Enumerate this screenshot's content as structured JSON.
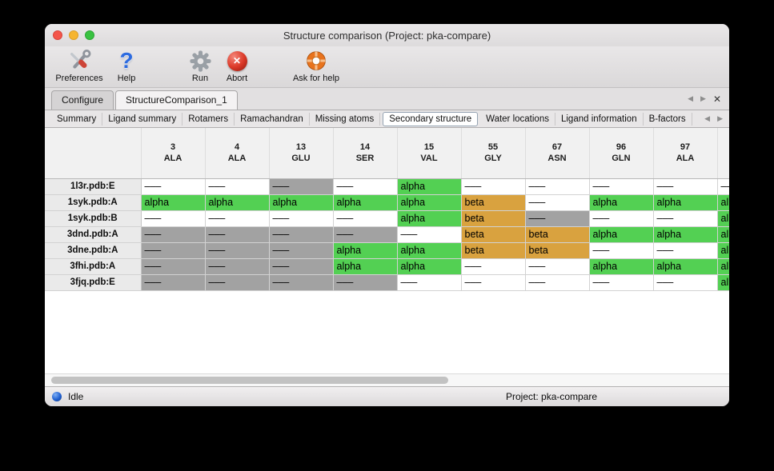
{
  "window": {
    "title": "Structure comparison (Project: pka-compare)"
  },
  "colors": {
    "alpha": "#53d053",
    "beta": "#d9a23f",
    "gray_cell": "#a2a2a2",
    "accent_blue": "#1f5fd0",
    "abort_red": "#dc3a29",
    "lifebuoy_orange": "#e8731d",
    "help_blue": "#2d6be0"
  },
  "icons": {
    "scroll_left": "◀",
    "scroll_right": "▶",
    "close_tab": "✕",
    "help_glyph": "?",
    "abort_glyph": "✕"
  },
  "toolbar": {
    "items": [
      {
        "id": "preferences",
        "label": "Preferences",
        "icon": "tools-icon"
      },
      {
        "id": "help",
        "label": "Help",
        "icon": "question-mark-icon"
      },
      {
        "id": "run",
        "label": "Run",
        "icon": "gear-icon"
      },
      {
        "id": "abort",
        "label": "Abort",
        "icon": "abort-icon"
      },
      {
        "id": "ask-for-help",
        "label": "Ask for help",
        "icon": "lifebuoy-icon"
      }
    ]
  },
  "main_tabs": {
    "items": [
      {
        "label": "Configure",
        "active": false
      },
      {
        "label": "StructureComparison_1",
        "active": true
      }
    ]
  },
  "sub_tabs": {
    "items": [
      {
        "label": "Summary",
        "active": false
      },
      {
        "label": "Ligand summary",
        "active": false
      },
      {
        "label": "Rotamers",
        "active": false
      },
      {
        "label": "Ramachandran",
        "active": false
      },
      {
        "label": "Missing atoms",
        "active": false
      },
      {
        "label": "Secondary structure",
        "active": true
      },
      {
        "label": "Water locations",
        "active": false
      },
      {
        "label": "Ligand information",
        "active": false
      },
      {
        "label": "B-factors",
        "active": false
      }
    ]
  },
  "table": {
    "columns": [
      {
        "num": "3",
        "res": "ALA"
      },
      {
        "num": "4",
        "res": "ALA"
      },
      {
        "num": "13",
        "res": "GLU"
      },
      {
        "num": "14",
        "res": "SER"
      },
      {
        "num": "15",
        "res": "VAL"
      },
      {
        "num": "55",
        "res": "GLY"
      },
      {
        "num": "67",
        "res": "ASN"
      },
      {
        "num": "96",
        "res": "GLN"
      },
      {
        "num": "97",
        "res": "ALA"
      },
      {
        "num": "",
        "res": ""
      }
    ],
    "rows": [
      {
        "name": "1l3r.pdb:E",
        "cells": [
          {
            "v": "–––",
            "t": "blank"
          },
          {
            "v": "–––",
            "t": "blank"
          },
          {
            "v": "–––",
            "t": "gray"
          },
          {
            "v": "–––",
            "t": "blank"
          },
          {
            "v": "alpha",
            "t": "alpha"
          },
          {
            "v": "–––",
            "t": "blank"
          },
          {
            "v": "–––",
            "t": "blank"
          },
          {
            "v": "–––",
            "t": "blank"
          },
          {
            "v": "–––",
            "t": "blank"
          },
          {
            "v": "–––",
            "t": "blank"
          }
        ]
      },
      {
        "name": "1syk.pdb:A",
        "cells": [
          {
            "v": "alpha",
            "t": "alpha"
          },
          {
            "v": "alpha",
            "t": "alpha"
          },
          {
            "v": "alpha",
            "t": "alpha"
          },
          {
            "v": "alpha",
            "t": "alpha"
          },
          {
            "v": "alpha",
            "t": "alpha"
          },
          {
            "v": "beta",
            "t": "beta"
          },
          {
            "v": "–––",
            "t": "blank"
          },
          {
            "v": "alpha",
            "t": "alpha"
          },
          {
            "v": "alpha",
            "t": "alpha"
          },
          {
            "v": "alpha",
            "t": "alpha"
          }
        ]
      },
      {
        "name": "1syk.pdb:B",
        "cells": [
          {
            "v": "–––",
            "t": "blank"
          },
          {
            "v": "–––",
            "t": "blank"
          },
          {
            "v": "–––",
            "t": "blank"
          },
          {
            "v": "–––",
            "t": "blank"
          },
          {
            "v": "alpha",
            "t": "alpha"
          },
          {
            "v": "beta",
            "t": "beta"
          },
          {
            "v": "–––",
            "t": "gray"
          },
          {
            "v": "–––",
            "t": "blank"
          },
          {
            "v": "–––",
            "t": "blank"
          },
          {
            "v": "alpha",
            "t": "alpha"
          }
        ]
      },
      {
        "name": "3dnd.pdb:A",
        "cells": [
          {
            "v": "–––",
            "t": "gray"
          },
          {
            "v": "–––",
            "t": "gray"
          },
          {
            "v": "–––",
            "t": "gray"
          },
          {
            "v": "–––",
            "t": "gray"
          },
          {
            "v": "–––",
            "t": "blank"
          },
          {
            "v": "beta",
            "t": "beta"
          },
          {
            "v": "beta",
            "t": "beta"
          },
          {
            "v": "alpha",
            "t": "alpha"
          },
          {
            "v": "alpha",
            "t": "alpha"
          },
          {
            "v": "alpha",
            "t": "alpha"
          }
        ]
      },
      {
        "name": "3dne.pdb:A",
        "cells": [
          {
            "v": "–––",
            "t": "gray"
          },
          {
            "v": "–––",
            "t": "gray"
          },
          {
            "v": "–––",
            "t": "gray"
          },
          {
            "v": "alpha",
            "t": "alpha"
          },
          {
            "v": "alpha",
            "t": "alpha"
          },
          {
            "v": "beta",
            "t": "beta"
          },
          {
            "v": "beta",
            "t": "beta"
          },
          {
            "v": "–––",
            "t": "blank"
          },
          {
            "v": "–––",
            "t": "blank"
          },
          {
            "v": "alpha",
            "t": "alpha"
          }
        ]
      },
      {
        "name": "3fhi.pdb:A",
        "cells": [
          {
            "v": "–––",
            "t": "gray"
          },
          {
            "v": "–––",
            "t": "gray"
          },
          {
            "v": "–––",
            "t": "gray"
          },
          {
            "v": "alpha",
            "t": "alpha"
          },
          {
            "v": "alpha",
            "t": "alpha"
          },
          {
            "v": "–––",
            "t": "blank"
          },
          {
            "v": "–––",
            "t": "blank"
          },
          {
            "v": "alpha",
            "t": "alpha"
          },
          {
            "v": "alpha",
            "t": "alpha"
          },
          {
            "v": "alpha",
            "t": "alpha"
          }
        ]
      },
      {
        "name": "3fjq.pdb:E",
        "cells": [
          {
            "v": "–––",
            "t": "gray"
          },
          {
            "v": "–––",
            "t": "gray"
          },
          {
            "v": "–––",
            "t": "gray"
          },
          {
            "v": "–––",
            "t": "gray"
          },
          {
            "v": "–––",
            "t": "blank"
          },
          {
            "v": "–––",
            "t": "blank"
          },
          {
            "v": "–––",
            "t": "blank"
          },
          {
            "v": "–––",
            "t": "blank"
          },
          {
            "v": "–––",
            "t": "blank"
          },
          {
            "v": "alpha",
            "t": "alpha"
          }
        ]
      }
    ]
  },
  "status_bar": {
    "status": "Idle",
    "project": "Project: pka-compare"
  }
}
